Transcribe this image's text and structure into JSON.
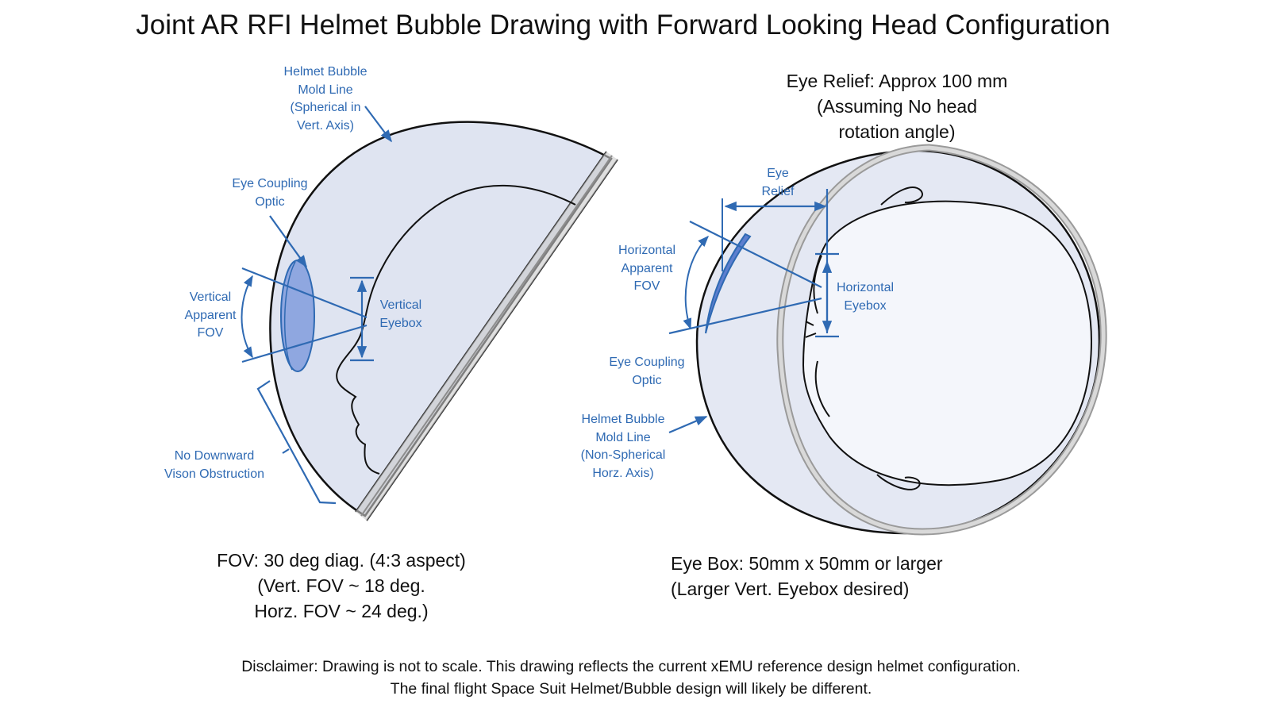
{
  "title": "Joint AR RFI Helmet Bubble Drawing with Forward Looking Head Configuration",
  "side_view": {
    "mold_line_label": "Helmet Bubble\nMold Line\n(Spherical in\nVert. Axis)",
    "eye_coupling_label": "Eye Coupling\nOptic",
    "vertical_fov_label": "Vertical\nApparent\nFOV",
    "vertical_eyebox_label": "Vertical\nEyebox",
    "no_downward_label": "No Downward\nVison  Obstruction"
  },
  "top_view": {
    "eye_relief_heading": "Eye Relief: Approx 100 mm\n(Assuming No head\nrotation angle)",
    "eye_relief_label": "Eye\nRelief",
    "horizontal_fov_label": "Horizontal\nApparent\nFOV",
    "horizontal_eyebox_label": "Horizontal\nEyebox",
    "eye_coupling_label": "Eye Coupling\nOptic",
    "mold_line_label": "Helmet Bubble\nMold Line\n(Non-Spherical\nHorz. Axis)"
  },
  "fov_note": "FOV:  30 deg diag. (4:3 aspect)\n(Vert. FOV ~ 18 deg.\nHorz. FOV ~ 24 deg.)",
  "eyebox_note": "Eye Box: 50mm x 50mm or larger\n(Larger Vert. Eyebox desired)",
  "disclaimer": "Disclaimer:  Drawing is not to scale.  This drawing reflects the current xEMU reference design helmet configuration.\nThe final flight Space Suit Helmet/Bubble design will likely be different.",
  "colors": {
    "annotation": "#2f6ab3",
    "bubble_fill": "#dfe4f1",
    "optic_fill": "#8fa7e0",
    "outline": "#111111"
  }
}
